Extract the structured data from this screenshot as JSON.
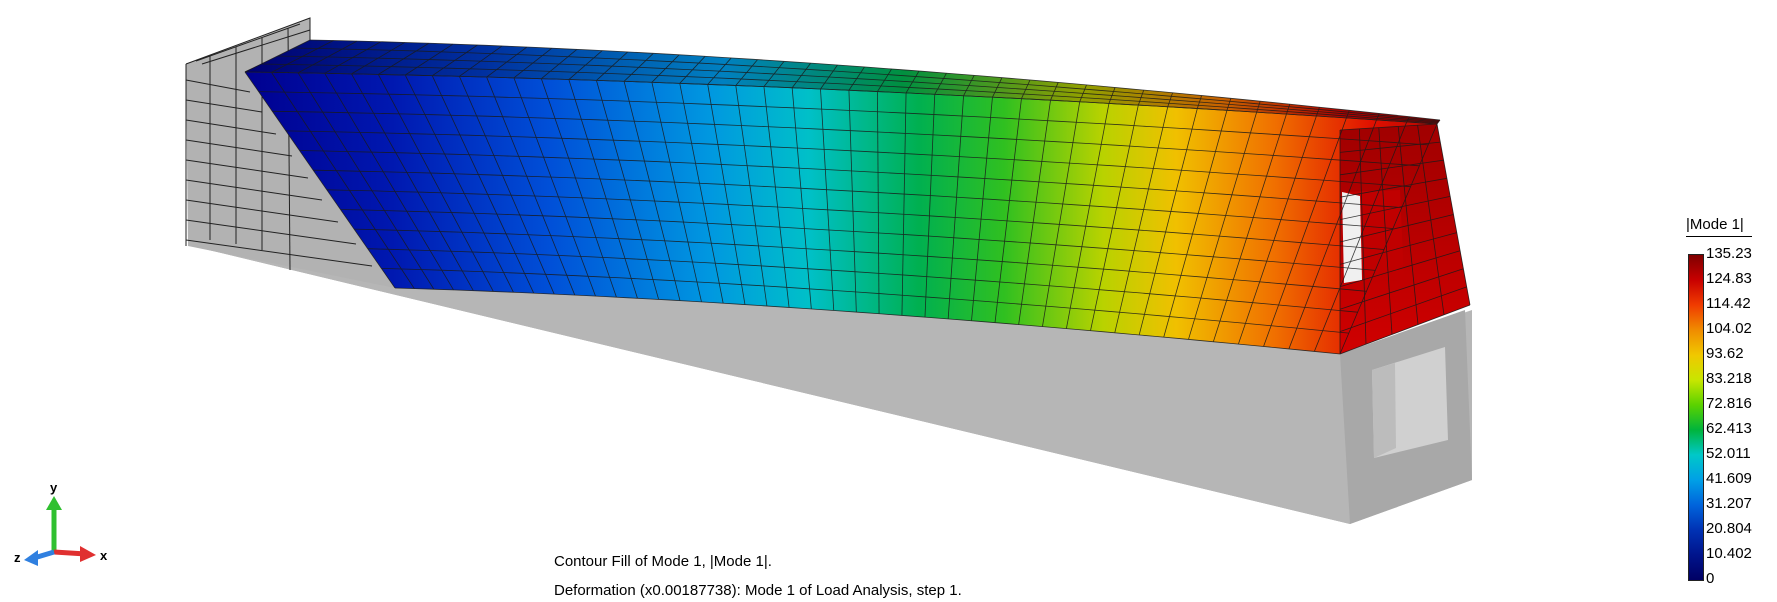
{
  "legend": {
    "title": "|Mode 1|",
    "labels": [
      "135.23",
      "124.83",
      "114.42",
      "104.02",
      "93.62",
      "83.218",
      "72.816",
      "62.413",
      "52.011",
      "41.609",
      "31.207",
      "20.804",
      "10.402",
      "0"
    ],
    "colormap": [
      "#7f0000",
      "#c80000",
      "#f03c00",
      "#f08c00",
      "#f0c800",
      "#c8e600",
      "#5ad200",
      "#00b43c",
      "#00c8c8",
      "#00a0e6",
      "#0064dc",
      "#0032b4",
      "#00148c",
      "#000064"
    ]
  },
  "captions": {
    "line1": "Contour Fill of Mode 1, |Mode 1|.",
    "line2": "Deformation (x0.00187738): Mode 1 of Load Analysis, step 1."
  },
  "axes": {
    "x": "x",
    "y": "y",
    "z": "z",
    "x_color": "#e03030",
    "y_color": "#30c030",
    "z_color": "#3080e0"
  },
  "model": {
    "undeformed_color": "#b4b4b4",
    "mesh_color": "#222222"
  }
}
